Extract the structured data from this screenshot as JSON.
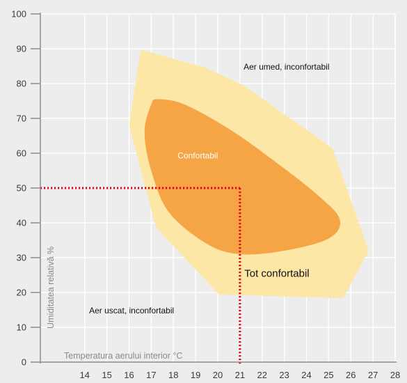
{
  "chart_data": {
    "type": "area",
    "xlabel": "Temperatura aerului interior °C",
    "ylabel": "Umiditatea relativă %",
    "xlim": [
      12,
      28
    ],
    "ylim": [
      0,
      100
    ],
    "x_ticks": [
      14,
      15,
      16,
      17,
      18,
      19,
      20,
      21,
      22,
      23,
      24,
      25,
      26,
      27,
      28
    ],
    "y_ticks": [
      0,
      10,
      20,
      30,
      40,
      50,
      60,
      70,
      80,
      90,
      100
    ],
    "grid": true,
    "regions": [
      {
        "name": "Tot confortabil",
        "color": "#fde7a6",
        "boundary": [
          [
            16.6,
            89
          ],
          [
            19.4,
            84
          ],
          [
            21.1,
            79
          ],
          [
            25.1,
            61
          ],
          [
            26.7,
            32
          ],
          [
            25.6,
            19
          ],
          [
            20.1,
            20
          ],
          [
            17.3,
            39
          ],
          [
            16.1,
            68
          ]
        ]
      },
      {
        "name": "Confortabil",
        "color": "#f5a545",
        "boundary": [
          [
            17.3,
            75.5
          ],
          [
            18.5,
            74
          ],
          [
            20.5,
            67
          ],
          [
            22.5,
            58
          ],
          [
            24.5,
            48
          ],
          [
            25.5,
            41
          ],
          [
            25,
            35.5
          ],
          [
            23,
            32
          ],
          [
            21,
            31
          ],
          [
            19.5,
            34
          ],
          [
            17.8,
            43
          ],
          [
            17,
            55
          ],
          [
            16.7,
            66
          ],
          [
            17,
            74
          ]
        ]
      }
    ],
    "annotations": [
      {
        "text": "Aer umed, inconfortabil",
        "x": 23.1,
        "y": 84
      },
      {
        "text": "Aer uscat, inconfortabil",
        "x": 14.2,
        "y": 14
      },
      {
        "text": "Confortabil",
        "x": 19.1,
        "y": 58.5
      },
      {
        "text": "Tot confortabil",
        "x": 21.2,
        "y": 24.5
      }
    ],
    "reference_point": {
      "x": 21,
      "y": 50,
      "color": "#e0001a"
    },
    "background": "#ededed",
    "grid_color": "#ffffff",
    "axis_color": "#8c8c8c"
  }
}
